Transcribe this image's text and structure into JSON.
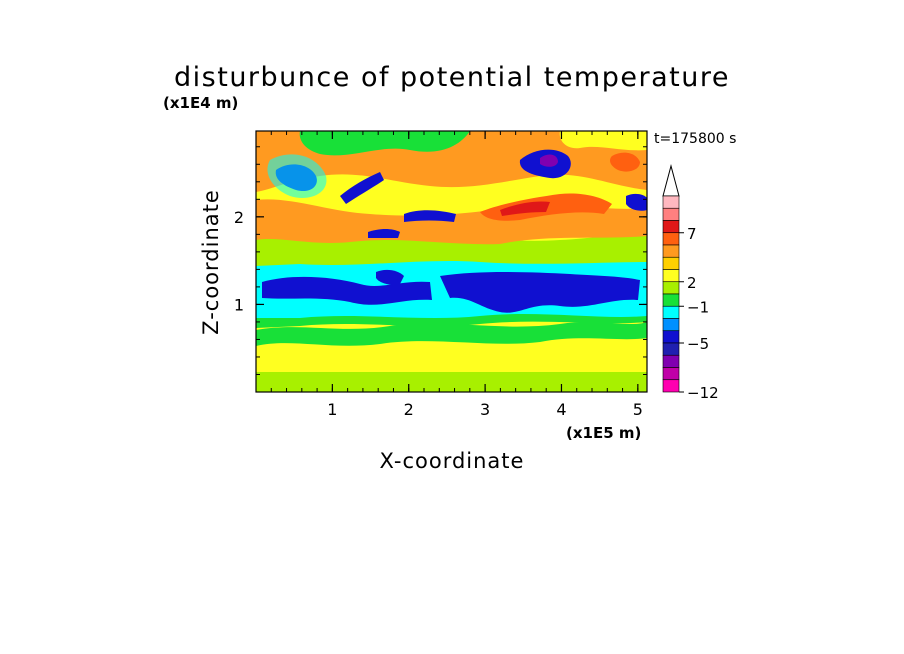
{
  "chart_data": {
    "type": "heatmap",
    "title": "disturbunce of potential temperature",
    "xlabel": "X-coordinate",
    "ylabel": "Z-coordinate",
    "x_unit": "(x1E5 m)",
    "y_unit": "(x1E4 m)",
    "time_label": "t=175800 s",
    "xlim": [
      0,
      5.12
    ],
    "ylim": [
      0,
      2.98
    ],
    "x_ticks": [
      "1",
      "2",
      "3",
      "4",
      "5"
    ],
    "y_ticks": [
      "1",
      "2"
    ],
    "legend": {
      "position": "right",
      "labels": [
        "7",
        "2",
        "−1",
        "−5",
        "−12"
      ],
      "colors": [
        "#ffb8c0",
        "#ff8080",
        "#e01818",
        "#ff6010",
        "#ff9a20",
        "#ffd000",
        "#ffff20",
        "#a8f000",
        "#18e038",
        "#00ffff",
        "#0090ff",
        "#1010d0",
        "#2020b0",
        "#8000b0",
        "#c000a8",
        "#ff00b0"
      ]
    },
    "rows": [
      {
        "z": 0.05,
        "value": -1
      },
      {
        "z": 0.3,
        "value": 1
      },
      {
        "z": 0.55,
        "value": 1
      },
      {
        "z": 0.8,
        "value": -1
      },
      {
        "z": 1.1,
        "value": -3
      },
      {
        "z": 1.35,
        "value": 1
      },
      {
        "z": 1.7,
        "value": 2
      },
      {
        "z": 2.1,
        "value": 3
      },
      {
        "z": 2.5,
        "value": 4
      },
      {
        "z": 2.85,
        "value": 2
      }
    ]
  }
}
